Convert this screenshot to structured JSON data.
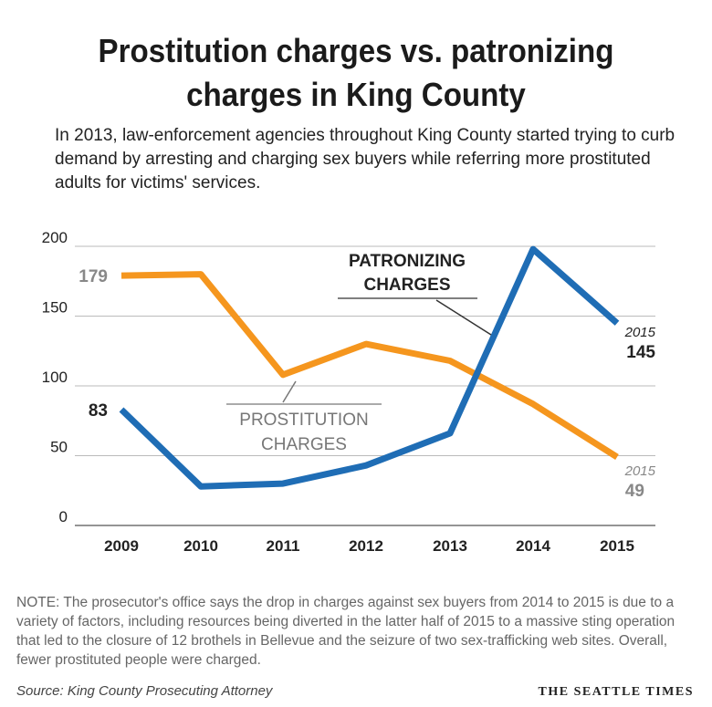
{
  "title_line1": "Prostitution charges vs. patronizing",
  "title_line2": "charges in King County",
  "subtitle": "In 2013, law-enforcement agencies throughout King County started trying to curb demand by arresting and charging sex buyers while referring more prostituted adults for victims' services.",
  "note": "NOTE: The prosecutor's office says the drop in charges against sex buyers from 2014 to 2015 is due to a variety of factors, including resources being diverted in the latter half of 2015 to a massive sting operation that led to the closure of 12 brothels in Bellevue and the seizure of two sex-trafficking web sites. Overall, fewer prostituted people were charged.",
  "source": "Source: King County Prosecuting Attorney",
  "brand": "THE SEATTLE TIMES",
  "colors": {
    "prostitution": "#f5961e",
    "patronizing": "#1f6db5",
    "grid": "#bbbbbb"
  },
  "chart_data": {
    "type": "line",
    "categories": [
      "2009",
      "2010",
      "2011",
      "2012",
      "2013",
      "2014",
      "2015"
    ],
    "ylim": [
      0,
      200
    ],
    "yticks": [
      "0",
      "50",
      "100",
      "150",
      "200"
    ],
    "grid": true,
    "series": [
      {
        "name": "PROSTITUTION CHARGES",
        "label_line1": "PROSTITUTION",
        "label_line2": "CHARGES",
        "values": [
          179,
          180,
          108,
          130,
          118,
          87,
          49
        ],
        "start_label": "179",
        "end_year": "2015",
        "end_label": "49"
      },
      {
        "name": "PATRONIZING CHARGES",
        "label_line1": "PATRONIZING",
        "label_line2": "CHARGES",
        "values": [
          83,
          28,
          30,
          43,
          66,
          198,
          145
        ],
        "start_label": "83",
        "end_year": "2015",
        "end_label": "145"
      }
    ]
  }
}
